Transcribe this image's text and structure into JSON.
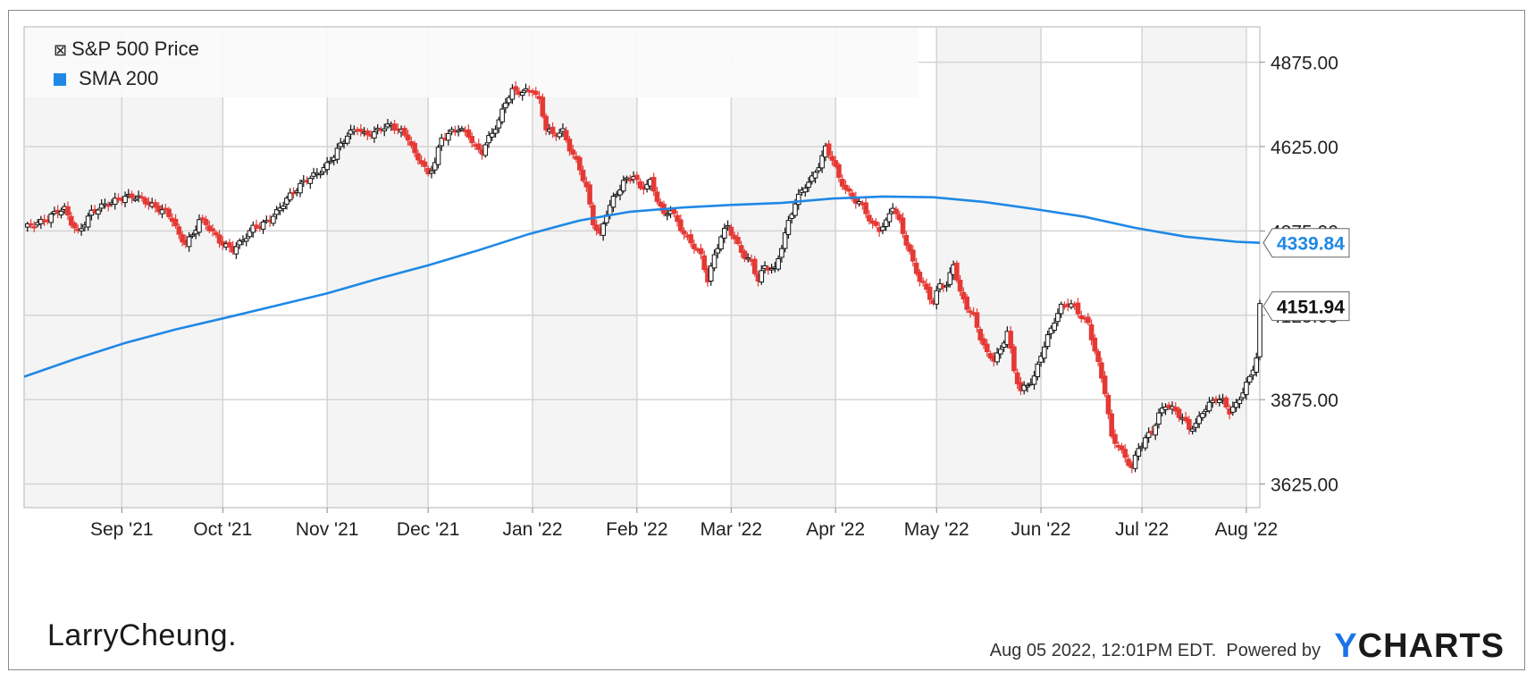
{
  "chart_data": {
    "type": "candlestick",
    "legend": [
      {
        "label": "S&P 500 Price",
        "icon": "candlestick-icon",
        "color": "#222222"
      },
      {
        "label": "SMA 200",
        "icon": "square-icon",
        "color": "#1f88e5"
      }
    ],
    "y_ticks": [
      "4875.00",
      "4625.00",
      "4375.00",
      "4125.00",
      "3875.00",
      "3625.00"
    ],
    "y_tick_values": [
      4875,
      4625,
      4375,
      4125,
      3875,
      3625
    ],
    "ylim": [
      3555,
      4980
    ],
    "x_ticks": [
      {
        "label": "Sep '21",
        "day": 14
      },
      {
        "label": "Oct '21",
        "day": 44
      },
      {
        "label": "Nov '21",
        "day": 75
      },
      {
        "label": "Dec '21",
        "day": 105
      },
      {
        "label": "Jan '22",
        "day": 136
      },
      {
        "label": "Feb '22",
        "day": 167
      },
      {
        "label": "Mar '22",
        "day": 195
      },
      {
        "label": "Apr '22",
        "day": 226
      },
      {
        "label": "May '22",
        "day": 256
      },
      {
        "label": "Jun '22",
        "day": 287
      },
      {
        "label": "Jul '22",
        "day": 317
      },
      {
        "label": "Aug '22",
        "day": 348
      }
    ],
    "xlim": [
      -15,
      352
    ],
    "price_close": [
      [
        -15,
        4385
      ],
      [
        -12,
        4395
      ],
      [
        -9,
        4405
      ],
      [
        -7,
        4420
      ],
      [
        -5,
        4435
      ],
      [
        -3,
        4440
      ],
      [
        -1,
        4400
      ],
      [
        1,
        4368
      ],
      [
        3,
        4400
      ],
      [
        5,
        4430
      ],
      [
        8,
        4448
      ],
      [
        11,
        4460
      ],
      [
        14,
        4473
      ],
      [
        17,
        4478
      ],
      [
        20,
        4470
      ],
      [
        22,
        4455
      ],
      [
        25,
        4440
      ],
      [
        27,
        4432
      ],
      [
        29,
        4410
      ],
      [
        31,
        4360
      ],
      [
        33,
        4338
      ],
      [
        35,
        4362
      ],
      [
        37,
        4408
      ],
      [
        39,
        4396
      ],
      [
        41,
        4370
      ],
      [
        43,
        4345
      ],
      [
        45,
        4330
      ],
      [
        47,
        4320
      ],
      [
        49,
        4338
      ],
      [
        51,
        4360
      ],
      [
        53,
        4385
      ],
      [
        56,
        4395
      ],
      [
        58,
        4410
      ],
      [
        60,
        4430
      ],
      [
        63,
        4470
      ],
      [
        65,
        4490
      ],
      [
        68,
        4520
      ],
      [
        70,
        4534
      ],
      [
        72,
        4545
      ],
      [
        75,
        4570
      ],
      [
        77,
        4600
      ],
      [
        79,
        4630
      ],
      [
        81,
        4660
      ],
      [
        84,
        4680
      ],
      [
        86,
        4660
      ],
      [
        89,
        4665
      ],
      [
        91,
        4680
      ],
      [
        94,
        4688
      ],
      [
        96,
        4675
      ],
      [
        99,
        4652
      ],
      [
        101,
        4600
      ],
      [
        103,
        4580
      ],
      [
        105,
        4540
      ],
      [
        107,
        4580
      ],
      [
        109,
        4650
      ],
      [
        112,
        4668
      ],
      [
        114,
        4680
      ],
      [
        117,
        4660
      ],
      [
        119,
        4620
      ],
      [
        121,
        4610
      ],
      [
        123,
        4650
      ],
      [
        126,
        4700
      ],
      [
        128,
        4760
      ],
      [
        130,
        4790
      ],
      [
        133,
        4786
      ],
      [
        136,
        4793
      ],
      [
        138,
        4760
      ],
      [
        140,
        4680
      ],
      [
        142,
        4660
      ],
      [
        145,
        4670
      ],
      [
        147,
        4620
      ],
      [
        150,
        4560
      ],
      [
        152,
        4500
      ],
      [
        154,
        4400
      ],
      [
        156,
        4360
      ],
      [
        158,
        4430
      ],
      [
        160,
        4470
      ],
      [
        163,
        4520
      ],
      [
        166,
        4540
      ],
      [
        168,
        4500
      ],
      [
        171,
        4520
      ],
      [
        173,
        4470
      ],
      [
        175,
        4420
      ],
      [
        177,
        4440
      ],
      [
        179,
        4400
      ],
      [
        182,
        4350
      ],
      [
        184,
        4330
      ],
      [
        186,
        4300
      ],
      [
        188,
        4230
      ],
      [
        190,
        4300
      ],
      [
        192,
        4360
      ],
      [
        194,
        4390
      ],
      [
        197,
        4330
      ],
      [
        199,
        4300
      ],
      [
        201,
        4280
      ],
      [
        203,
        4230
      ],
      [
        205,
        4270
      ],
      [
        208,
        4260
      ],
      [
        210,
        4330
      ],
      [
        212,
        4400
      ],
      [
        214,
        4460
      ],
      [
        217,
        4510
      ],
      [
        219,
        4530
      ],
      [
        221,
        4570
      ],
      [
        223,
        4620
      ],
      [
        225,
        4590
      ],
      [
        227,
        4530
      ],
      [
        229,
        4500
      ],
      [
        231,
        4470
      ],
      [
        233,
        4460
      ],
      [
        235,
        4430
      ],
      [
        237,
        4392
      ],
      [
        239,
        4380
      ],
      [
        241,
        4400
      ],
      [
        243,
        4450
      ],
      [
        245,
        4400
      ],
      [
        247,
        4340
      ],
      [
        249,
        4280
      ],
      [
        251,
        4230
      ],
      [
        253,
        4200
      ],
      [
        255,
        4160
      ],
      [
        257,
        4220
      ],
      [
        259,
        4210
      ],
      [
        261,
        4280
      ],
      [
        263,
        4190
      ],
      [
        265,
        4150
      ],
      [
        267,
        4120
      ],
      [
        269,
        4060
      ],
      [
        271,
        4010
      ],
      [
        273,
        3995
      ],
      [
        275,
        4020
      ],
      [
        277,
        4080
      ],
      [
        279,
        3960
      ],
      [
        281,
        3900
      ],
      [
        283,
        3920
      ],
      [
        285,
        3940
      ],
      [
        287,
        4010
      ],
      [
        289,
        4060
      ],
      [
        291,
        4110
      ],
      [
        293,
        4150
      ],
      [
        295,
        4160
      ],
      [
        297,
        4150
      ],
      [
        299,
        4120
      ],
      [
        301,
        4100
      ],
      [
        303,
        4020
      ],
      [
        306,
        3900
      ],
      [
        308,
        3760
      ],
      [
        310,
        3740
      ],
      [
        312,
        3700
      ],
      [
        314,
        3675
      ],
      [
        316,
        3730
      ],
      [
        318,
        3760
      ],
      [
        320,
        3780
      ],
      [
        322,
        3830
      ],
      [
        324,
        3860
      ],
      [
        327,
        3840
      ],
      [
        329,
        3820
      ],
      [
        331,
        3790
      ],
      [
        333,
        3800
      ],
      [
        335,
        3840
      ],
      [
        337,
        3860
      ],
      [
        339,
        3880
      ],
      [
        341,
        3870
      ],
      [
        343,
        3840
      ],
      [
        345,
        3860
      ],
      [
        347,
        3900
      ],
      [
        349,
        3940
      ],
      [
        351,
        4000
      ],
      [
        352,
        4151.94
      ]
    ],
    "sma_200": [
      [
        -15,
        3943
      ],
      [
        0,
        3995
      ],
      [
        15,
        4043
      ],
      [
        30,
        4083
      ],
      [
        45,
        4118
      ],
      [
        60,
        4154
      ],
      [
        75,
        4190
      ],
      [
        90,
        4233
      ],
      [
        105,
        4273
      ],
      [
        120,
        4318
      ],
      [
        135,
        4366
      ],
      [
        150,
        4406
      ],
      [
        165,
        4432
      ],
      [
        180,
        4444
      ],
      [
        195,
        4452
      ],
      [
        210,
        4458
      ],
      [
        225,
        4471
      ],
      [
        240,
        4477
      ],
      [
        255,
        4475
      ],
      [
        270,
        4461
      ],
      [
        285,
        4440
      ],
      [
        300,
        4417
      ],
      [
        315,
        4384
      ],
      [
        330,
        4358
      ],
      [
        345,
        4343
      ],
      [
        352,
        4339.84
      ]
    ],
    "last_price_label": "4151.94",
    "sma_label": "4339.84",
    "grid": true
  },
  "footer": {
    "logo_text": "LarryCheung.",
    "timestamp": "Aug 05 2022, 12:01PM EDT.",
    "powered_by": "Powered by",
    "brand_y": "Y",
    "brand_rest": "CHARTS"
  }
}
